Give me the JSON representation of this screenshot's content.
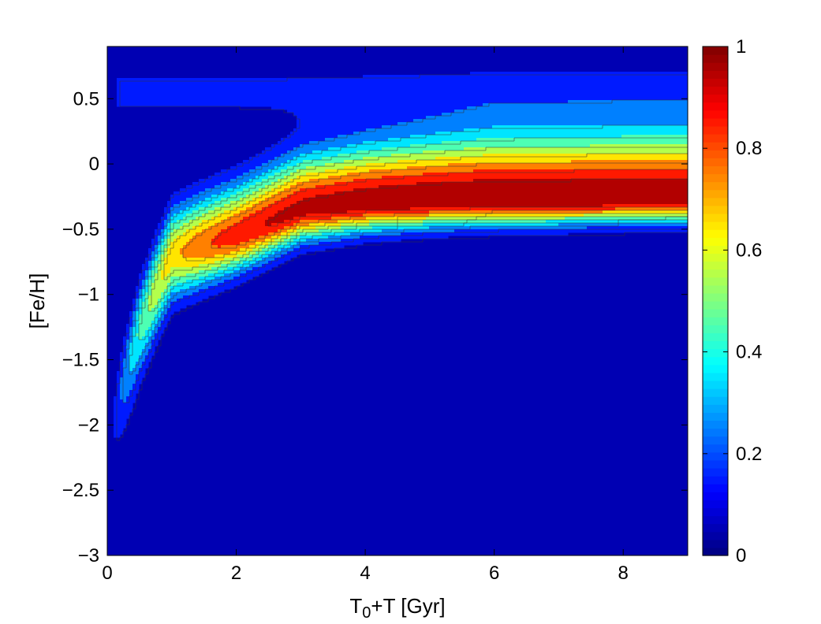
{
  "chart_data": {
    "type": "heatmap",
    "subtype": "filled-contour",
    "title": "",
    "xlabel_main": "T",
    "xlabel_sub": "0",
    "xlabel_rest": "+T [Gyr]",
    "ylabel": "[Fe/H]",
    "xlim": [
      0,
      9
    ],
    "ylim": [
      -3,
      0.9
    ],
    "xticks": [
      0,
      2,
      4,
      6,
      8
    ],
    "xtick_labels": [
      "0",
      "2",
      "4",
      "6",
      "8"
    ],
    "yticks": [
      0.5,
      0,
      -0.5,
      -1,
      -1.5,
      -2,
      -2.5,
      -3
    ],
    "ytick_labels": [
      "0.5",
      "0",
      "−0.5",
      "−1",
      "−1.5",
      "−2",
      "−2.5",
      "−3"
    ],
    "colorbar": {
      "range": [
        0,
        1
      ],
      "ticks": [
        0,
        0.2,
        0.4,
        0.6,
        0.8,
        1
      ],
      "tick_labels": [
        "0",
        "0.2",
        "0.4",
        "0.6",
        "0.8",
        "1"
      ],
      "colormap": "jet"
    },
    "contour_levels": [
      0.1,
      0.2,
      0.3,
      0.4,
      0.5,
      0.6,
      0.7,
      0.8,
      0.9
    ],
    "background_level": 0.05,
    "ridge": {
      "description": "peak metallicity track vs time",
      "t": [
        0.0,
        0.2,
        0.5,
        0.8,
        1.0,
        1.5,
        2.0,
        2.5,
        3.0,
        4.0,
        5.0,
        6.0,
        7.0,
        8.0,
        9.0
      ],
      "feh": [
        -2.2,
        -1.75,
        -1.25,
        -0.9,
        -0.7,
        -0.62,
        -0.55,
        -0.45,
        -0.35,
        -0.3,
        -0.28,
        -0.27,
        -0.27,
        -0.26,
        -0.26
      ]
    },
    "grid": false
  },
  "colors": {
    "axes": "#000000",
    "background": "#ffffff",
    "contour_line": "#333333"
  }
}
